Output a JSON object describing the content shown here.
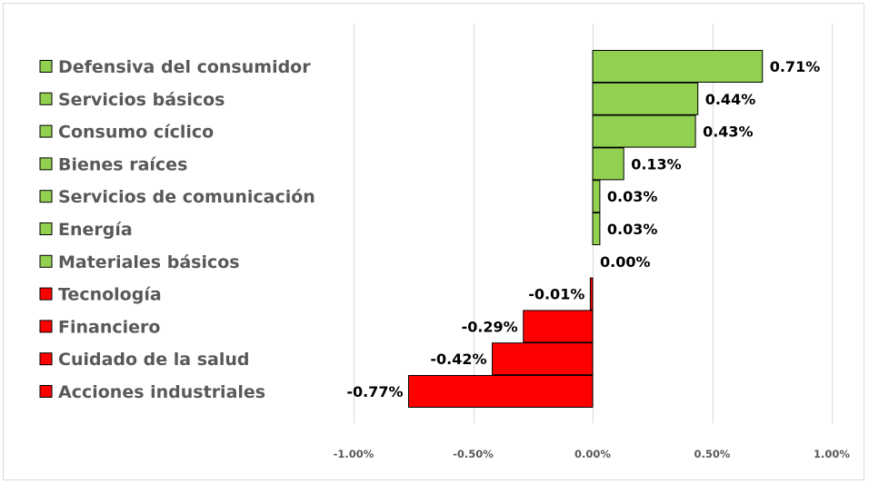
{
  "chart_data": {
    "type": "bar",
    "orientation": "horizontal",
    "categories": [
      "Defensiva del consumidor",
      "Servicios básicos",
      "Consumo cíclico",
      "Bienes raíces",
      "Servicios de comunicación",
      "Energía",
      "Materiales básicos",
      "Tecnología",
      "Financiero",
      "Cuidado de la salud",
      "Acciones industriales"
    ],
    "values": [
      0.71,
      0.44,
      0.43,
      0.13,
      0.03,
      0.03,
      0.0,
      -0.01,
      -0.29,
      -0.42,
      -0.77
    ],
    "value_labels": [
      "0.71%",
      "0.44%",
      "0.43%",
      "0.13%",
      "0.03%",
      "0.03%",
      "0.00%",
      "-0.01%",
      "-0.29%",
      "-0.42%",
      "-0.77%"
    ],
    "xticks": [
      -1.0,
      -0.5,
      0.0,
      0.5,
      1.0
    ],
    "xtick_labels": [
      "-1.00%",
      "-0.50%",
      "0.00%",
      "0.50%",
      "1.00%"
    ],
    "xlim": [
      -1.0,
      1.0
    ],
    "title": "",
    "xlabel": "",
    "ylabel": "",
    "grid": "vertical",
    "legend": "left",
    "colors": {
      "positive": "#92d050",
      "negative": "#ff0000",
      "grid": "#d9d9d9",
      "label": "#595959"
    }
  }
}
